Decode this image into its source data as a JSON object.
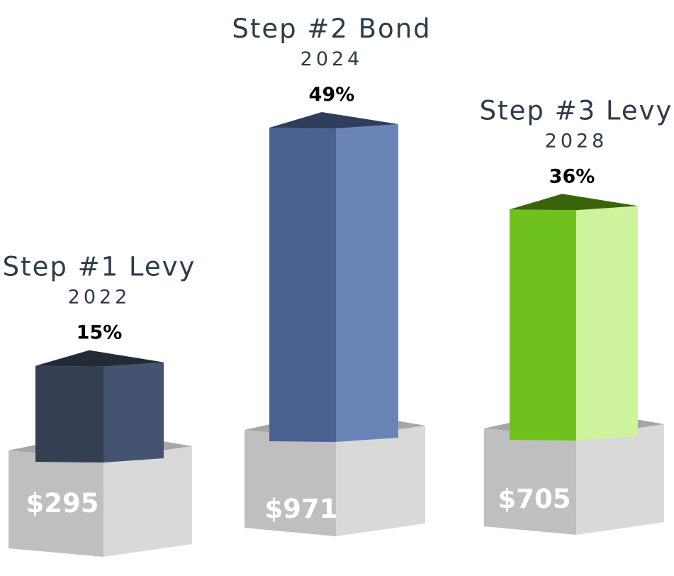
{
  "chart_data": {
    "type": "bar",
    "title": "",
    "xlabel": "",
    "ylabel": "",
    "legend": "none",
    "grid": false,
    "categories": [
      "Step #1 Levy",
      "Step #2 Bond",
      "Step #3 Levy"
    ],
    "years": [
      "2022",
      "2024",
      "2028"
    ],
    "percent_labels": [
      "15%",
      "49%",
      "36%"
    ],
    "values": [
      15,
      49,
      36
    ],
    "amount_labels": [
      "$295",
      "$971",
      "$705"
    ],
    "colors": {
      "bar_front": [
        "#353f52",
        "#4a6192",
        "#6fc21e"
      ],
      "bar_side": [
        "#44536f",
        "#6a84b8",
        "#cdf39c"
      ],
      "bar_top": [
        "#242b38",
        "#2f3e5c",
        "#3a640b"
      ],
      "base_front": "#bfbfbf",
      "base_side": "#d9d9d9",
      "base_top": "#a6a6a6",
      "title_text": "#2e3b49",
      "percent_text": "#000000",
      "amount_text": "#ffffff"
    }
  }
}
